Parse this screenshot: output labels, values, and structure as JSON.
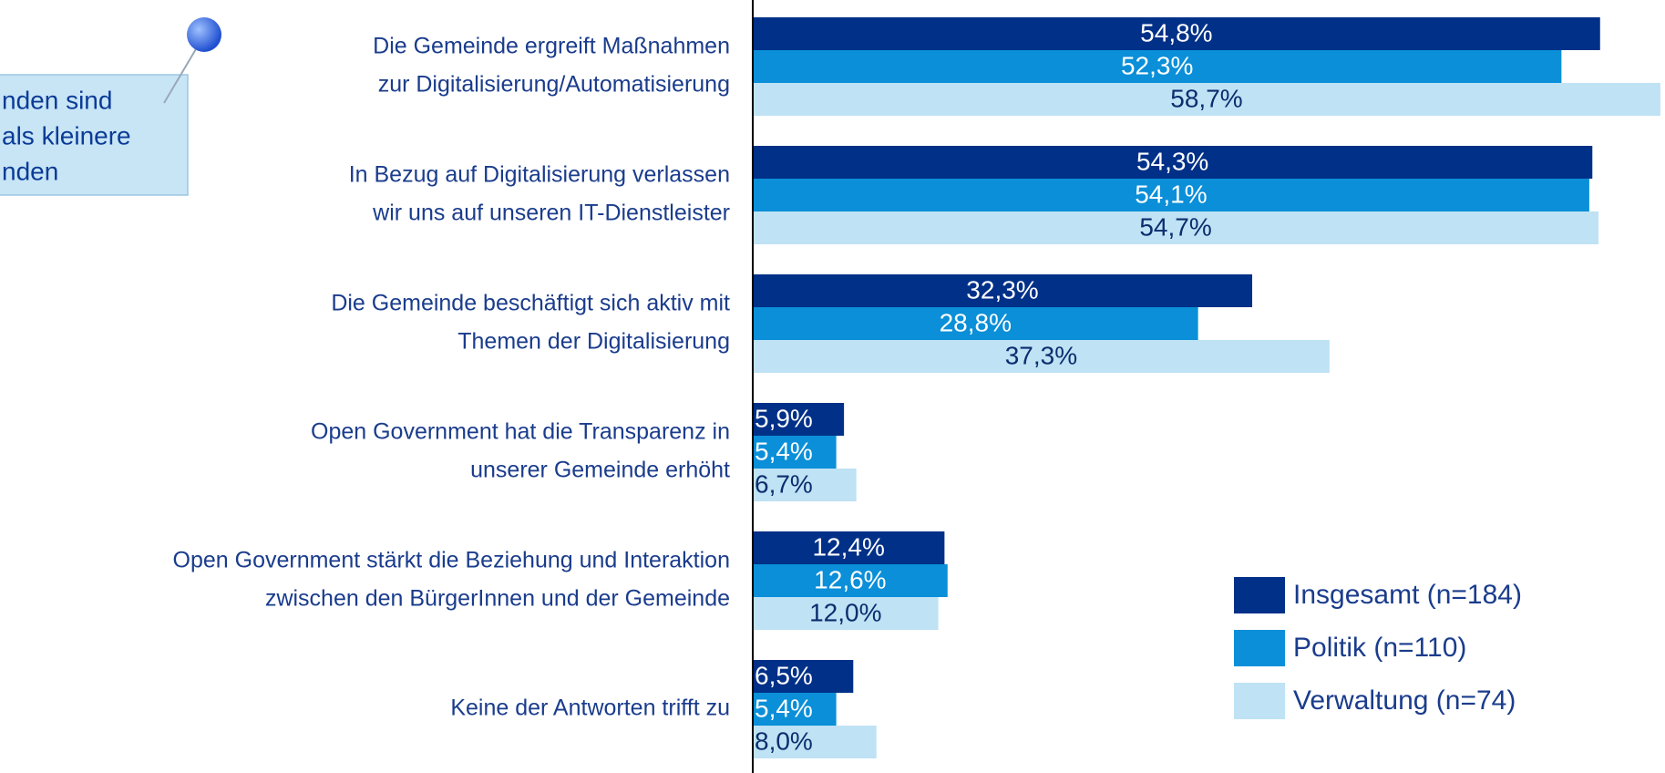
{
  "chart_data": {
    "type": "bar",
    "orientation": "horizontal",
    "categories": [
      [
        "Die Gemeinde ergreift Maßnahmen",
        "zur Digitalisierung/Automatisierung"
      ],
      [
        "In Bezug auf Digitalisierung verlassen",
        "wir uns auf unseren IT-Dienstleister"
      ],
      [
        "Die Gemeinde beschäftigt sich aktiv mit",
        "Themen der Digitalisierung"
      ],
      [
        "Open Government hat die Transparenz in",
        "unserer Gemeinde erhöht"
      ],
      [
        "Open Government stärkt die Beziehung und Interaktion",
        "zwischen den BürgerInnen und der Gemeinde"
      ],
      [
        "Keine der Antworten trifft zu"
      ]
    ],
    "series": [
      {
        "name": "Insgesamt (n=184)",
        "color": "#003087",
        "values": [
          54.8,
          54.3,
          32.3,
          5.9,
          12.4,
          6.5
        ],
        "value_labels": [
          "54,8%",
          "54,3%",
          "32,3%",
          "5,9%",
          "12,4%",
          "6,5%"
        ]
      },
      {
        "name": "Politik (n=110)",
        "color": "#0a8fd8",
        "values": [
          52.3,
          54.1,
          28.8,
          5.4,
          12.6,
          5.4
        ],
        "value_labels": [
          "52,3%",
          "54,1%",
          "28,8%",
          "5,4%",
          "12,6%",
          "5,4%"
        ]
      },
      {
        "name": "Verwaltung (n=74)",
        "color": "#bfe2f5",
        "values": [
          58.7,
          54.7,
          37.3,
          6.7,
          12.0,
          8.0
        ],
        "value_labels": [
          "58,7%",
          "54,7%",
          "37,3%",
          "6,7%",
          "12,0%",
          "8,0%"
        ]
      }
    ],
    "xlim": [
      0,
      60
    ],
    "legend": "bottom-right",
    "annotation": [
      "nden sind",
      "als kleinere",
      "nden"
    ]
  }
}
